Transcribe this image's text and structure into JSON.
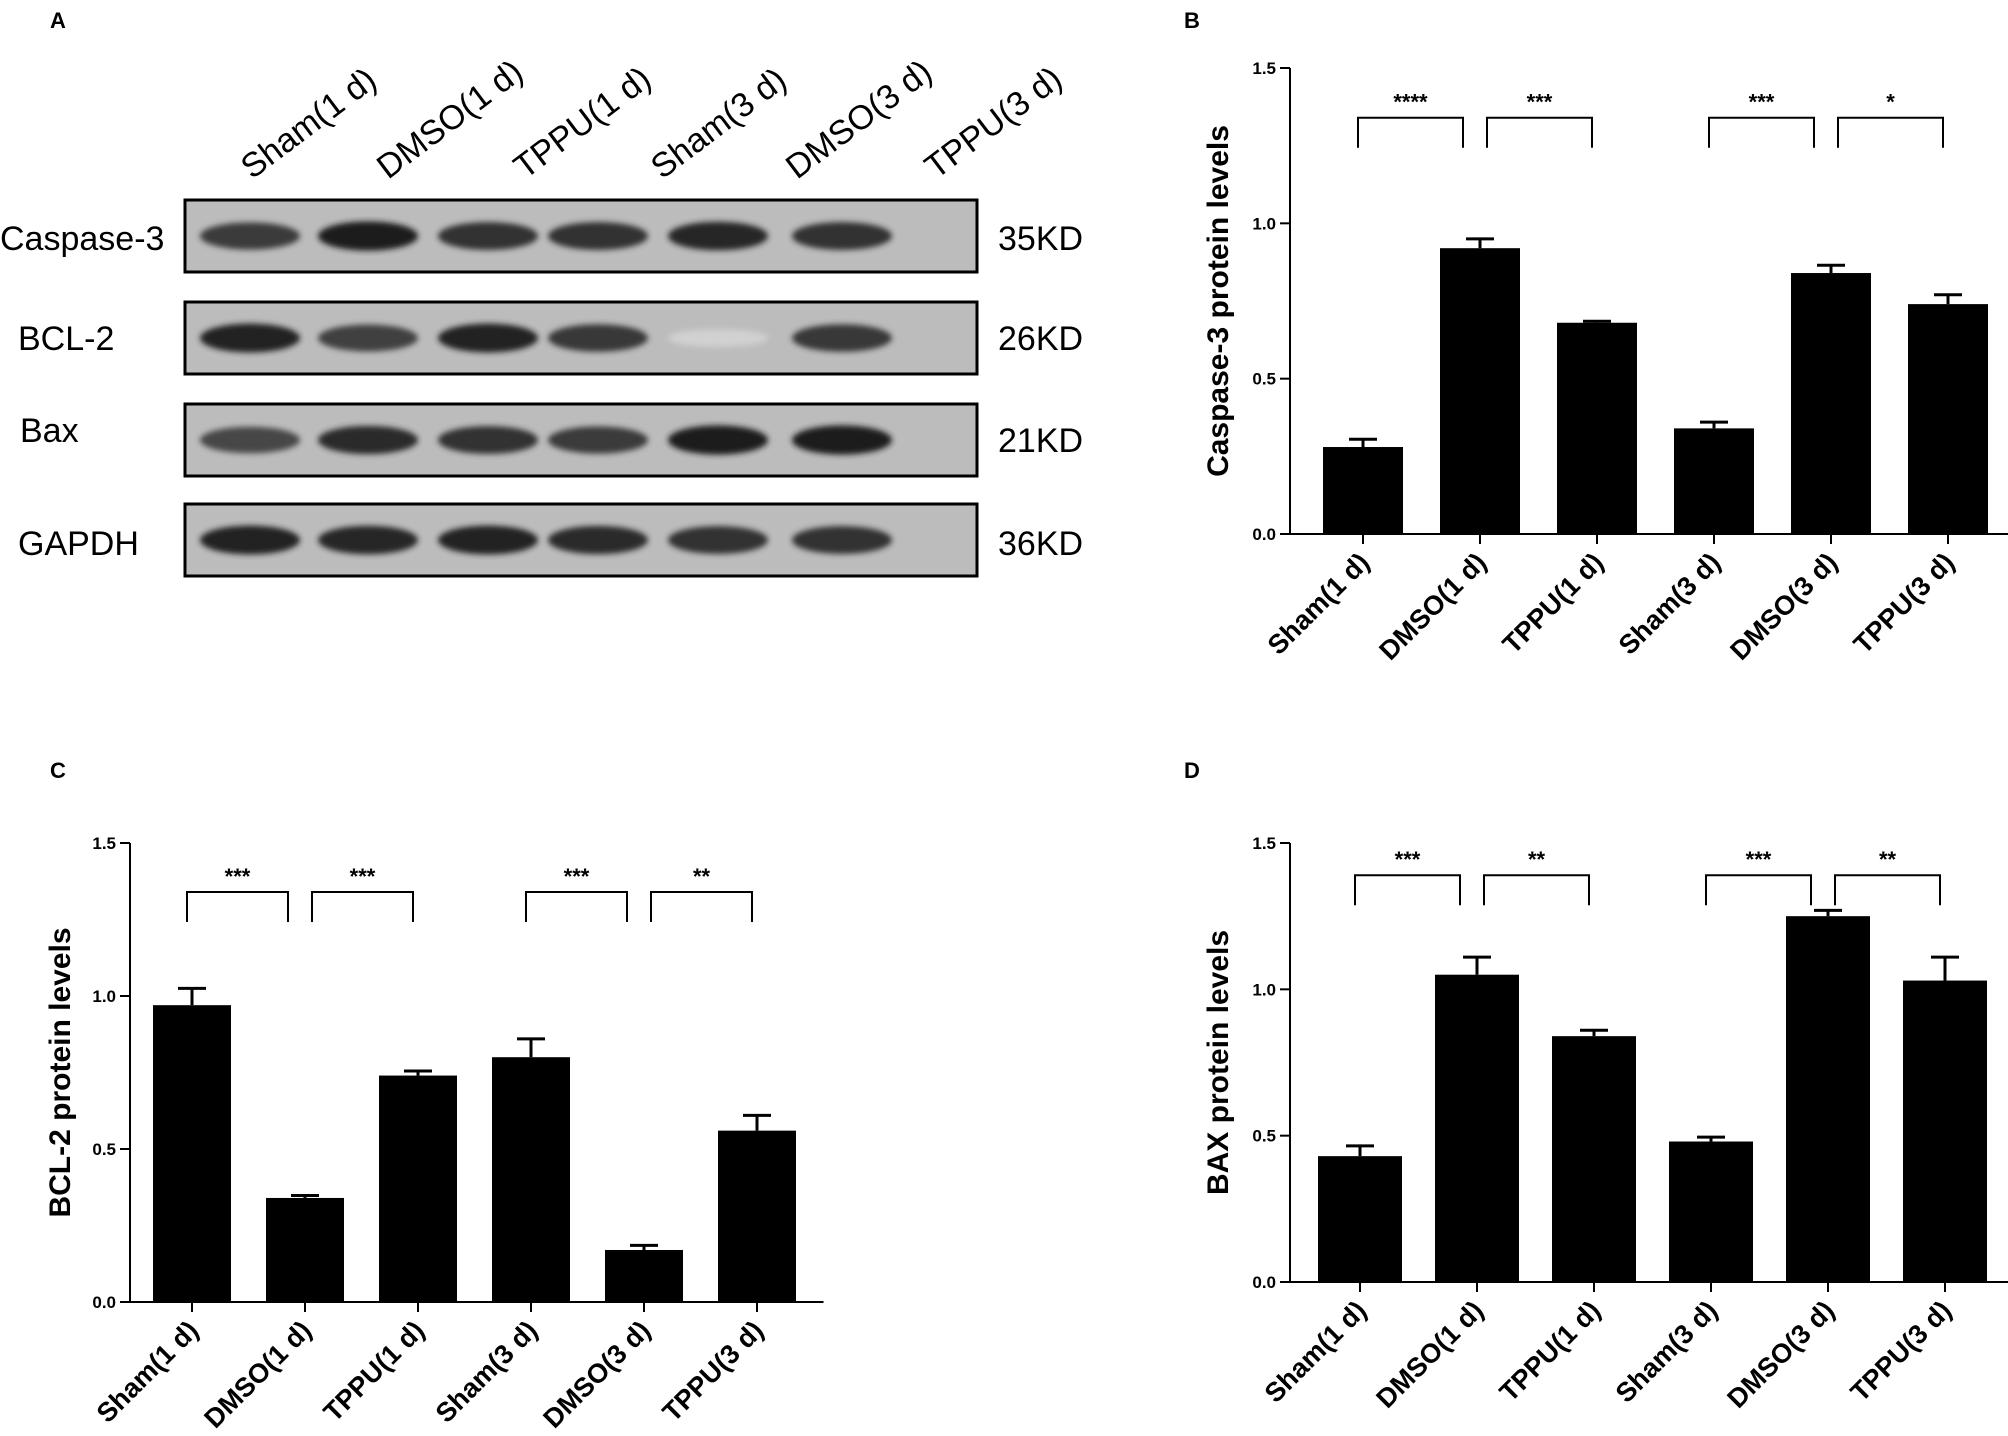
{
  "panels": {
    "a": "A",
    "b": "B",
    "c": "C",
    "d": "D"
  },
  "blot": {
    "lanes": [
      "Sham(1 d)",
      "DMSO(1 d)",
      "TPPU(1 d)",
      "Sham(3 d)",
      "DMSO(3 d)",
      "TPPU(3 d)"
    ],
    "rows": [
      {
        "protein": "Caspase-3",
        "size": "35KD",
        "intensity": [
          0.8,
          0.95,
          0.85,
          0.85,
          0.9,
          0.85
        ]
      },
      {
        "protein": "BCL-2",
        "size": "26KD",
        "intensity": [
          0.92,
          0.78,
          0.92,
          0.82,
          0.12,
          0.82
        ]
      },
      {
        "protein": "Bax",
        "size": "21KD",
        "intensity": [
          0.75,
          0.88,
          0.85,
          0.8,
          0.95,
          0.95
        ]
      },
      {
        "protein": "GAPDH",
        "size": "36KD",
        "intensity": [
          0.92,
          0.9,
          0.92,
          0.88,
          0.85,
          0.85
        ]
      }
    ]
  },
  "chart_data": [
    {
      "panel": "B",
      "type": "bar",
      "categories": [
        "Sham(1 d)",
        "DMSO(1 d)",
        "TPPU(1 d)",
        "Sham(3 d)",
        "DMSO(3 d)",
        "TPPU(3 d)"
      ],
      "values": [
        0.28,
        0.92,
        0.68,
        0.34,
        0.84,
        0.74
      ],
      "errors": [
        0.025,
        0.03,
        0.005,
        0.02,
        0.025,
        0.03
      ],
      "xlabel": "",
      "ylabel": "Caspase-3 protein levels",
      "ylim": [
        0,
        1.5
      ],
      "yticks": [
        "0.0",
        "0.5",
        "1.0",
        "1.5"
      ],
      "significance": [
        {
          "from": 0,
          "to": 1,
          "label": "****",
          "level": 1.34
        },
        {
          "from": 1,
          "to": 2,
          "label": "***",
          "level": 1.34
        },
        {
          "from": 3,
          "to": 4,
          "label": "***",
          "level": 1.34
        },
        {
          "from": 4,
          "to": 5,
          "label": "*",
          "level": 1.34
        }
      ]
    },
    {
      "panel": "C",
      "type": "bar",
      "categories": [
        "Sham(1 d)",
        "DMSO(1 d)",
        "TPPU(1 d)",
        "Sham(3 d)",
        "DMSO(3 d)",
        "TPPU(3 d)"
      ],
      "values": [
        0.97,
        0.34,
        0.74,
        0.8,
        0.17,
        0.56
      ],
      "errors": [
        0.055,
        0.008,
        0.015,
        0.06,
        0.015,
        0.05
      ],
      "xlabel": "",
      "ylabel": "BCL-2 protein levels",
      "ylim": [
        0,
        1.5
      ],
      "yticks": [
        "0.0",
        "0.5",
        "1.0",
        "1.5"
      ],
      "significance": [
        {
          "from": 0,
          "to": 1,
          "label": "***",
          "level": 1.34
        },
        {
          "from": 1,
          "to": 2,
          "label": "***",
          "level": 1.34
        },
        {
          "from": 3,
          "to": 4,
          "label": "***",
          "level": 1.34
        },
        {
          "from": 4,
          "to": 5,
          "label": "**",
          "level": 1.34
        }
      ]
    },
    {
      "panel": "D",
      "type": "bar",
      "categories": [
        "Sham(1 d)",
        "DMSO(1 d)",
        "TPPU(1 d)",
        "Sham(3 d)",
        "DMSO(3 d)",
        "TPPU(3 d)"
      ],
      "values": [
        0.43,
        1.05,
        0.84,
        0.48,
        1.25,
        1.03
      ],
      "errors": [
        0.035,
        0.06,
        0.02,
        0.015,
        0.02,
        0.08
      ],
      "xlabel": "",
      "ylabel": "BAX protein levels",
      "ylim": [
        0,
        1.5
      ],
      "yticks": [
        "0.0",
        "0.5",
        "1.0",
        "1.5"
      ],
      "significance": [
        {
          "from": 0,
          "to": 1,
          "label": "***",
          "level": 1.39
        },
        {
          "from": 1,
          "to": 2,
          "label": "**",
          "level": 1.39
        },
        {
          "from": 3,
          "to": 4,
          "label": "***",
          "level": 1.39
        },
        {
          "from": 4,
          "to": 5,
          "label": "**",
          "level": 1.39
        }
      ]
    }
  ]
}
